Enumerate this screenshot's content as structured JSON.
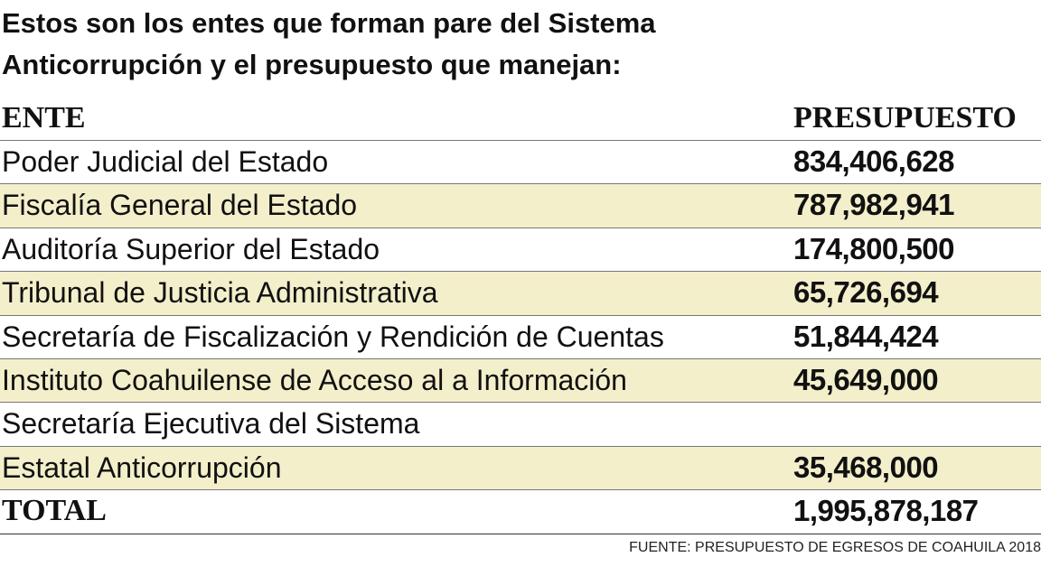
{
  "header": {
    "title": [
      "Estos son los entes que forman pare del Sistema",
      "Anticorrupción y el presupuesto que manejan:"
    ]
  },
  "table": {
    "columns": [
      "ENTE",
      "PRESUPUESTO"
    ],
    "rows": [
      [
        "Poder Judicial del Estado",
        "834,406,628"
      ],
      [
        "Fiscalía General del Estado",
        "787,982,941"
      ],
      [
        "Auditoría Superior del Estado",
        "174,800,500"
      ],
      [
        "Tribunal de Justicia Administrativa",
        "65,726,694"
      ],
      [
        "Secretaría de Fiscalización y Rendición de Cuentas",
        "51,844,424"
      ],
      [
        "Instituto Coahuilense de Acceso al a Información",
        "45,649,000"
      ],
      [
        "Secretaría Ejecutiva del Sistema"
      ],
      [
        "Estatal Anticorrupción",
        "35,468,000"
      ]
    ],
    "total": [
      "TOTAL",
      "1,995,878,187"
    ]
  },
  "footer": {
    "source": "FUENTE: PRESUPUESTO DE EGRESOS DE COAHUILA 2018"
  }
}
